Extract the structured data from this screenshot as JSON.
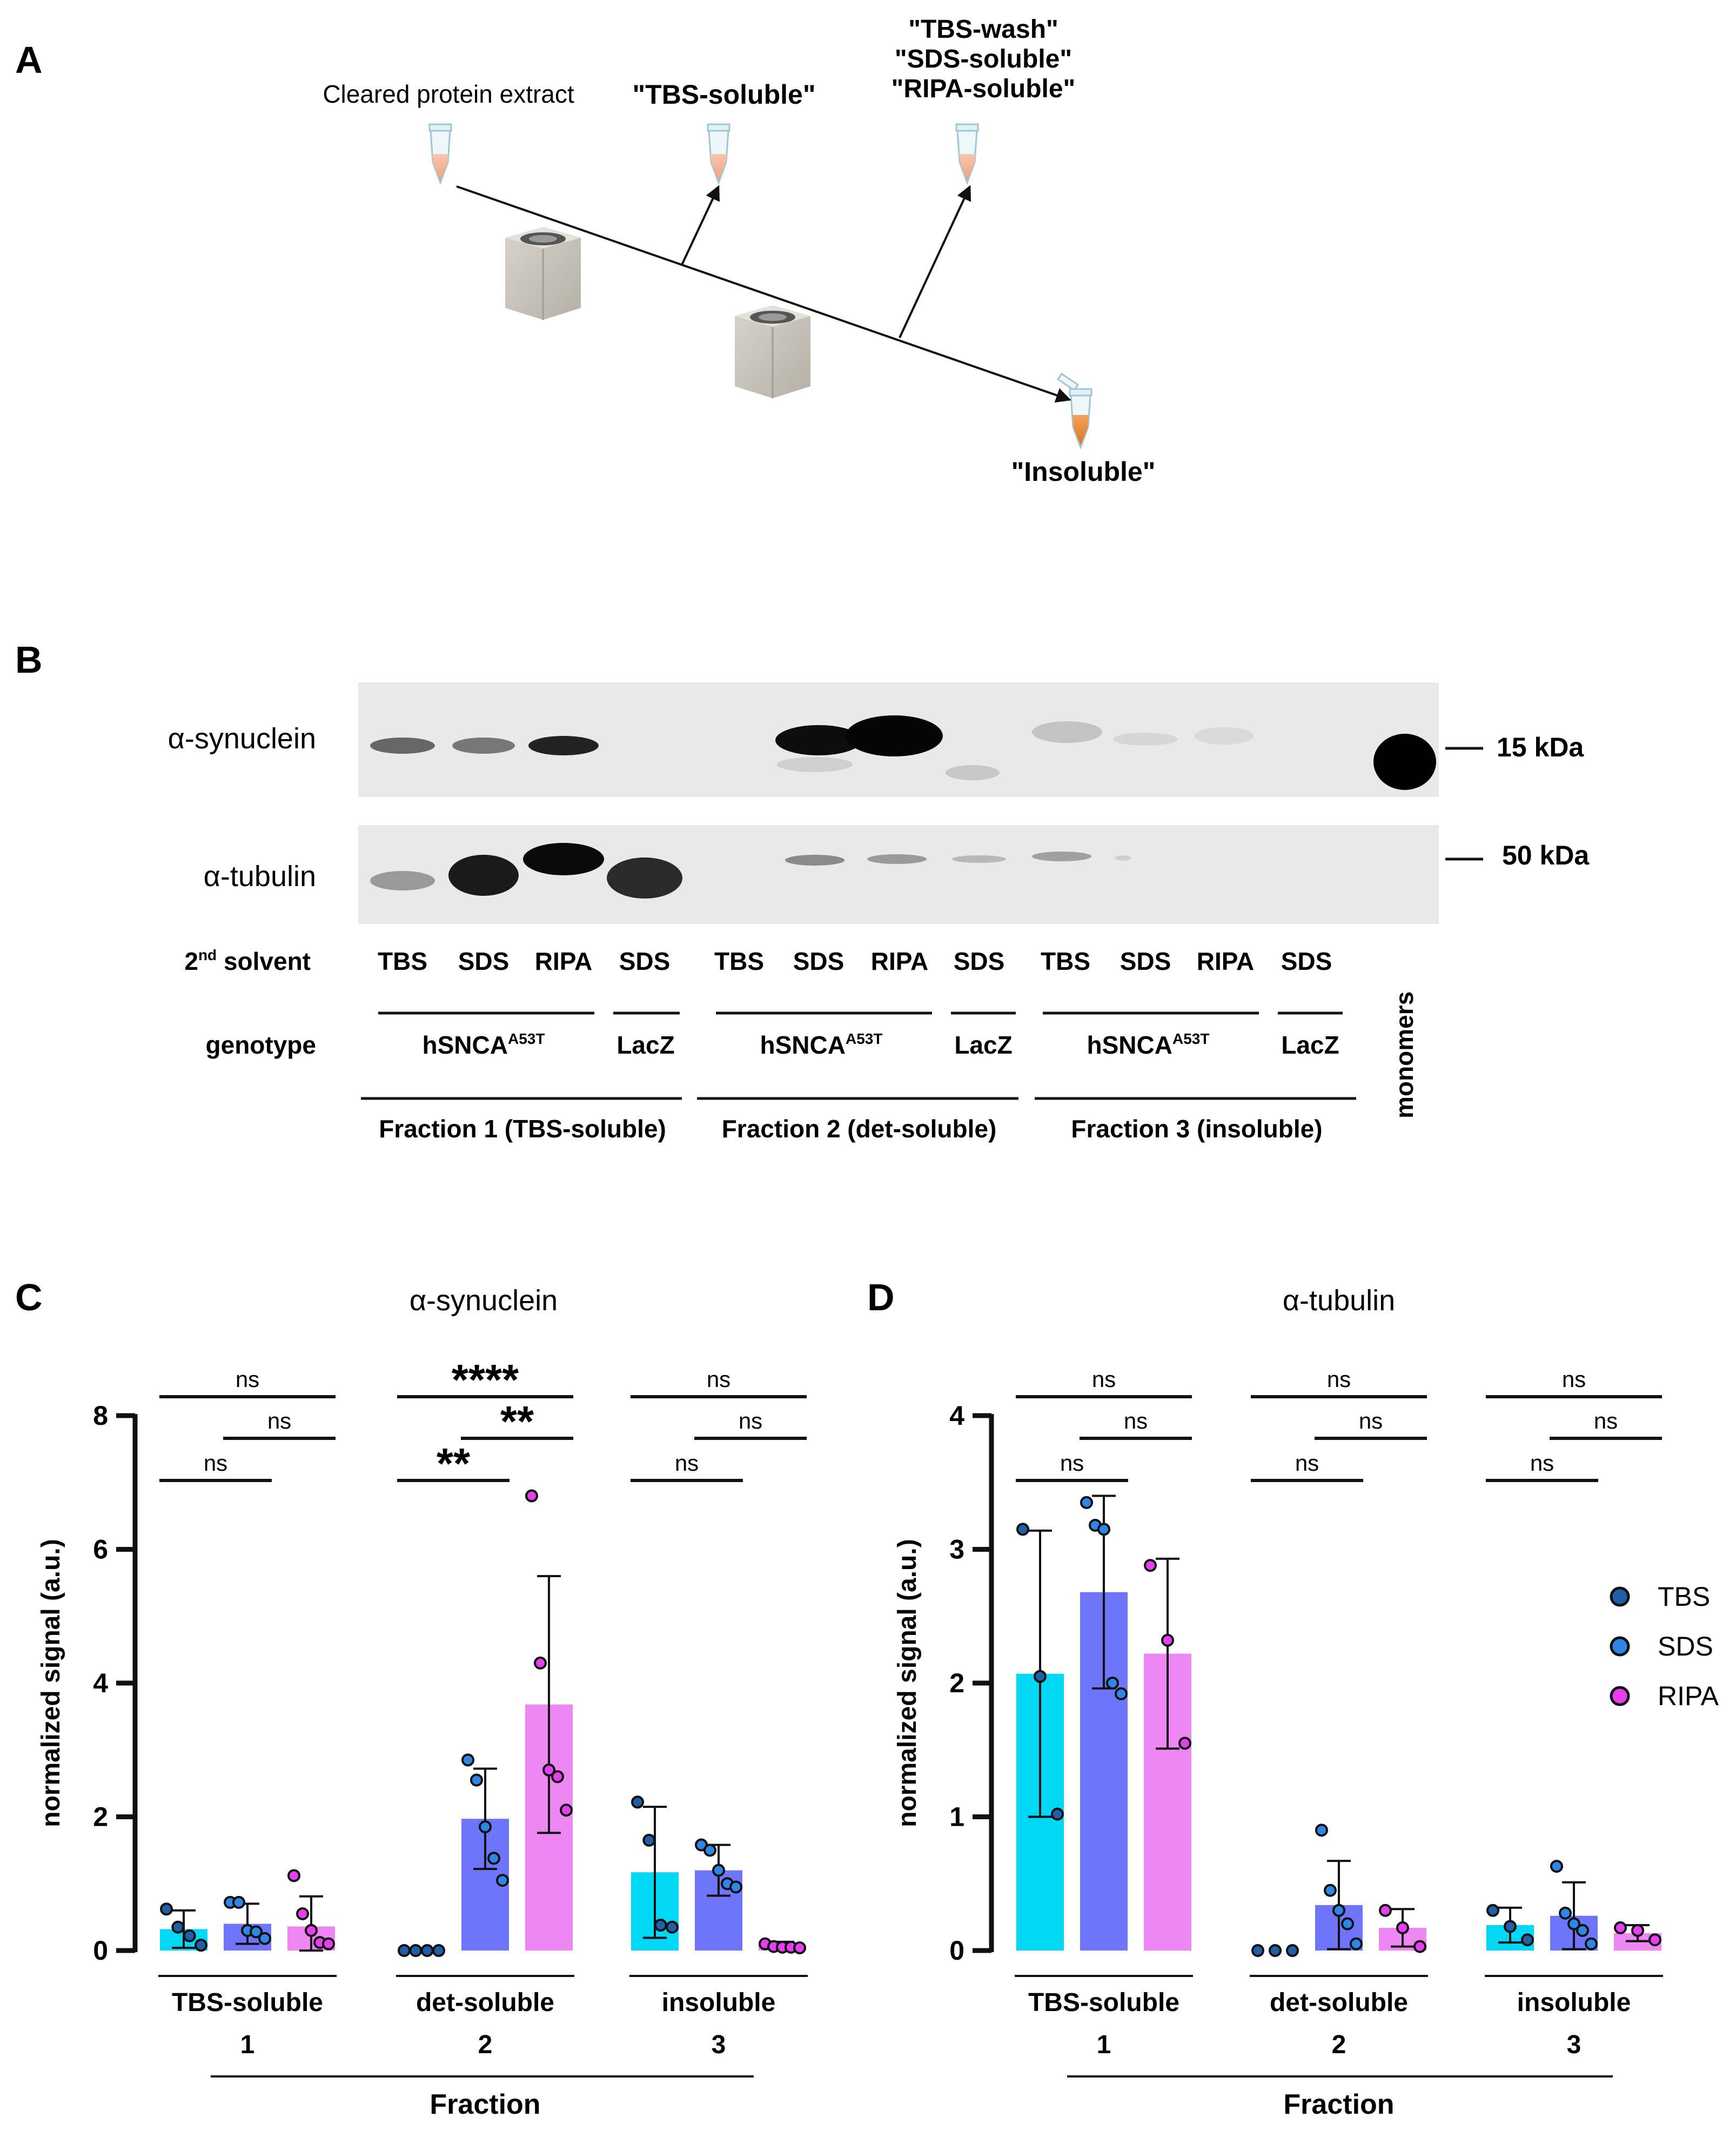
{
  "panels": {
    "a": {
      "label": "A",
      "cleared": "Cleared protein extract",
      "tbs_soluble": "\"TBS-soluble\"",
      "wash": [
        "\"TBS-wash\"",
        "\"SDS-soluble\"",
        "\"RIPA-soluble\""
      ],
      "insoluble": "\"Insoluble\""
    },
    "b": {
      "label": "B",
      "blot_rows": [
        {
          "name": "α-synuclein",
          "marker": "15 kDa"
        },
        {
          "name": "α-tubulin",
          "marker": "50 kDa"
        }
      ],
      "solvent_label": "2",
      "solvent_label_sup": "nd",
      "solvent_label_rest": " solvent",
      "solvents": [
        "TBS",
        "SDS",
        "RIPA",
        "SDS",
        "TBS",
        "SDS",
        "RIPA",
        "SDS",
        "TBS",
        "SDS",
        "RIPA",
        "SDS"
      ],
      "genotype_label": "genotype",
      "genotype_main": "hSNCA",
      "genotype_sup": "A53T",
      "genotype_control": "LacZ",
      "fractions": [
        "Fraction 1 (TBS-soluble)",
        "Fraction 2 (det-soluble)",
        "Fraction 3 (insoluble)"
      ],
      "monomers": "monomers"
    },
    "c": {
      "label": "C"
    },
    "d": {
      "label": "D"
    }
  },
  "legend": [
    {
      "name": "TBS",
      "color": "#1f5fa8"
    },
    {
      "name": "SDS",
      "color": "#2f86e6"
    },
    {
      "name": "RIPA",
      "color": "#e63ff0"
    }
  ],
  "colors": {
    "TBS": "#00d8f5",
    "SDS": "#6e75fb",
    "RIPA": "#ee86f4"
  },
  "chart_data": [
    {
      "type": "bar",
      "title": "α-synuclein",
      "ylabel": "normalized signal (a.u.)",
      "xlabel": "Fraction",
      "categories": [
        "TBS-soluble",
        "det-soluble",
        "insoluble"
      ],
      "category_numbers": [
        "1",
        "2",
        "3"
      ],
      "ylim": [
        0,
        8
      ],
      "yticks": [
        0,
        2,
        4,
        6,
        8
      ],
      "series": [
        {
          "name": "TBS",
          "values": [
            0.32,
            0.0,
            1.17
          ],
          "sd": [
            0.28,
            0.0,
            0.98
          ],
          "points": [
            [
              0.62,
              0.35,
              0.22,
              0.08
            ],
            [
              0.0,
              0.0,
              0.0,
              0.0
            ],
            [
              2.22,
              1.65,
              0.38,
              0.35
            ]
          ]
        },
        {
          "name": "SDS",
          "values": [
            0.4,
            1.97,
            1.2
          ],
          "sd": [
            0.3,
            0.75,
            0.38
          ],
          "points": [
            [
              0.72,
              0.72,
              0.3,
              0.28,
              0.18
            ],
            [
              2.85,
              2.55,
              1.85,
              1.38,
              1.05
            ],
            [
              1.58,
              1.5,
              1.2,
              1.0,
              0.95
            ]
          ]
        },
        {
          "name": "RIPA",
          "values": [
            0.36,
            3.68,
            0.08
          ],
          "sd": [
            0.45,
            1.92,
            0.05
          ],
          "points": [
            [
              1.12,
              0.55,
              0.3,
              0.12,
              0.1
            ],
            [
              6.8,
              4.3,
              2.7,
              2.6,
              2.1
            ],
            [
              0.1,
              0.06,
              0.05,
              0.05,
              0.04
            ]
          ]
        }
      ],
      "comparisons": [
        {
          "label": "ns",
          "group": 0,
          "from": 0,
          "to": 2,
          "level": 0
        },
        {
          "label": "ns",
          "group": 0,
          "from": 1,
          "to": 2,
          "level": 1
        },
        {
          "label": "ns",
          "group": 0,
          "from": 0,
          "to": 1,
          "level": 2
        },
        {
          "label": "****",
          "group": 1,
          "from": 0,
          "to": 2,
          "level": 0
        },
        {
          "label": "**",
          "group": 1,
          "from": 1,
          "to": 2,
          "level": 1
        },
        {
          "label": "**",
          "group": 1,
          "from": 0,
          "to": 1,
          "level": 2
        },
        {
          "label": "ns",
          "group": 2,
          "from": 0,
          "to": 2,
          "level": 0
        },
        {
          "label": "ns",
          "group": 2,
          "from": 1,
          "to": 2,
          "level": 1
        },
        {
          "label": "ns",
          "group": 2,
          "from": 0,
          "to": 1,
          "level": 2
        }
      ]
    },
    {
      "type": "bar",
      "title": "α-tubulin",
      "ylabel": "normalized signal (a.u.)",
      "xlabel": "Fraction",
      "categories": [
        "TBS-soluble",
        "det-soluble",
        "insoluble"
      ],
      "category_numbers": [
        "1",
        "2",
        "3"
      ],
      "ylim": [
        0,
        4
      ],
      "yticks": [
        0,
        1,
        2,
        3,
        4
      ],
      "series": [
        {
          "name": "TBS",
          "values": [
            2.07,
            0.0,
            0.19
          ],
          "sd": [
            1.07,
            0.0,
            0.13
          ],
          "points": [
            [
              3.15,
              2.05,
              1.02
            ],
            [
              0.0,
              0.0,
              0.0
            ],
            [
              0.3,
              0.18,
              0.08
            ]
          ]
        },
        {
          "name": "SDS",
          "values": [
            2.68,
            0.34,
            0.26
          ],
          "sd": [
            0.72,
            0.33,
            0.25
          ],
          "points": [
            [
              3.35,
              3.18,
              3.15,
              2.0,
              1.92
            ],
            [
              0.9,
              0.45,
              0.3,
              0.2,
              0.05
            ],
            [
              0.63,
              0.28,
              0.2,
              0.15,
              0.05
            ]
          ]
        },
        {
          "name": "RIPA",
          "values": [
            2.22,
            0.17,
            0.13
          ],
          "sd": [
            0.71,
            0.14,
            0.06
          ],
          "points": [
            [
              2.88,
              2.32,
              1.55
            ],
            [
              0.3,
              0.17,
              0.03
            ],
            [
              0.17,
              0.15,
              0.08
            ]
          ]
        }
      ],
      "comparisons": [
        {
          "label": "ns",
          "group": 0,
          "from": 0,
          "to": 2,
          "level": 0
        },
        {
          "label": "ns",
          "group": 0,
          "from": 1,
          "to": 2,
          "level": 1
        },
        {
          "label": "ns",
          "group": 0,
          "from": 0,
          "to": 1,
          "level": 2
        },
        {
          "label": "ns",
          "group": 1,
          "from": 0,
          "to": 2,
          "level": 0
        },
        {
          "label": "ns",
          "group": 1,
          "from": 1,
          "to": 2,
          "level": 1
        },
        {
          "label": "ns",
          "group": 1,
          "from": 0,
          "to": 1,
          "level": 2
        },
        {
          "label": "ns",
          "group": 2,
          "from": 0,
          "to": 2,
          "level": 0
        },
        {
          "label": "ns",
          "group": 2,
          "from": 1,
          "to": 2,
          "level": 1
        },
        {
          "label": "ns",
          "group": 2,
          "from": 0,
          "to": 1,
          "level": 2
        }
      ]
    }
  ]
}
